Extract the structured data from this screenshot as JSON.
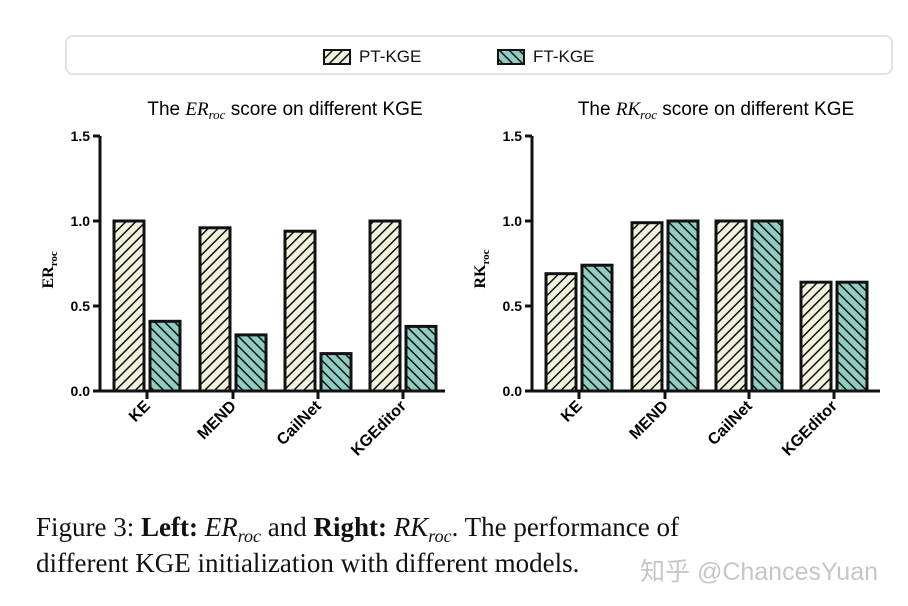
{
  "legend": [
    {
      "name": "PT-KGE",
      "fill": "#f1f2dd",
      "hatch": "forward"
    },
    {
      "name": "FT-KGE",
      "fill": "#8fcdc3",
      "hatch": "backward"
    }
  ],
  "chart_data": [
    {
      "type": "bar",
      "title_prefix": "The ",
      "title_math": "ER",
      "title_sub": "roc",
      "title_suffix": " score on different KGE",
      "ylabel": "ER",
      "ylabel_sub": "roc",
      "categories": [
        "KE",
        "MEND",
        "CailNet",
        "KGEditor"
      ],
      "series": [
        {
          "name": "PT-KGE",
          "values": [
            1.0,
            0.96,
            0.94,
            1.0
          ]
        },
        {
          "name": "FT-KGE",
          "values": [
            0.41,
            0.33,
            0.22,
            0.38
          ]
        }
      ],
      "ylim": [
        0,
        1.5
      ],
      "yticks": [
        "0.0",
        "0.5",
        "1.0",
        "1.5"
      ],
      "grid": false
    },
    {
      "type": "bar",
      "title_prefix": "The ",
      "title_math": "RK",
      "title_sub": "roc",
      "title_suffix": " score on different KGE",
      "ylabel": "RK",
      "ylabel_sub": "roc",
      "categories": [
        "KE",
        "MEND",
        "CailNet",
        "KGEditor"
      ],
      "series": [
        {
          "name": "PT-KGE",
          "values": [
            0.69,
            0.99,
            1.0,
            0.64
          ]
        },
        {
          "name": "FT-KGE",
          "values": [
            0.74,
            1.0,
            1.0,
            0.64
          ]
        }
      ],
      "ylim": [
        0,
        1.5
      ],
      "yticks": [
        "0.0",
        "0.5",
        "1.0",
        "1.5"
      ],
      "grid": false
    }
  ],
  "caption": {
    "label": "Figure 3: ",
    "left_word": "Left:",
    "left_math": "ER",
    "left_sub": "roc",
    "and": " and ",
    "right_word": "Right:",
    "right_math": "RK",
    "right_sub": "roc",
    "rest1": ".  The performance of",
    "line2": "different KGE initialization with different models."
  },
  "watermark": "知乎 @ChancesYuan"
}
